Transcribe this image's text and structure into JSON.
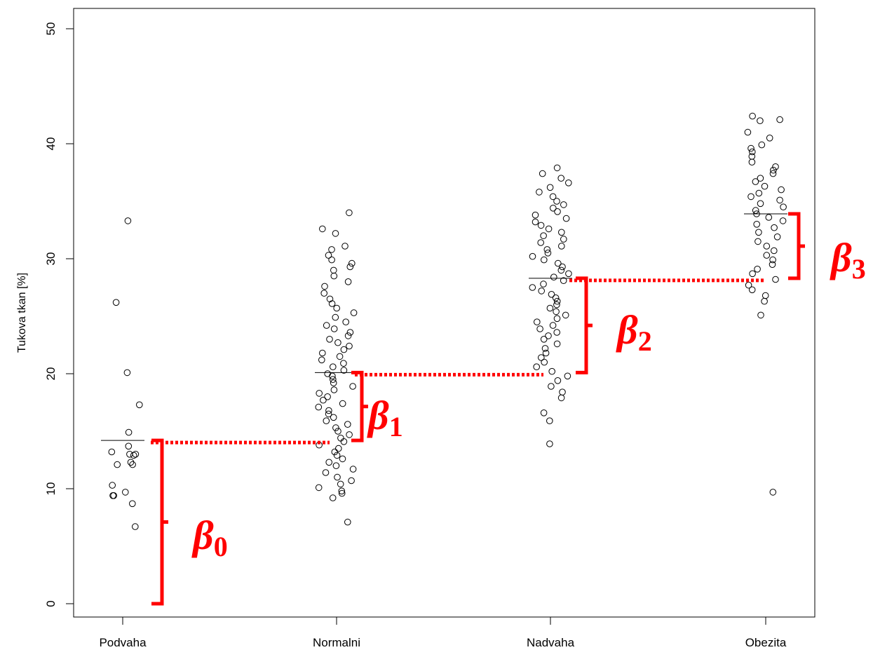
{
  "chart_data": {
    "type": "scatter",
    "ylabel": "Tukova tkan [%]",
    "xlabel": "",
    "categories": [
      "Podvaha",
      "Normalni",
      "Nadvaha",
      "Obezita"
    ],
    "ylim": [
      -2,
      52
    ],
    "yticks": [
      0,
      10,
      20,
      30,
      40,
      50
    ],
    "group_means": [
      14.2,
      20.1,
      28.3,
      33.9
    ],
    "series": [
      {
        "category": "Podvaha",
        "values": [
          33.3,
          26.2,
          20.1,
          17.3,
          14.9,
          13.7,
          13.2,
          13.0,
          13.0,
          12.9,
          12.3,
          12.1,
          12.1,
          10.3,
          9.7,
          9.4,
          9.4,
          8.7,
          6.7
        ]
      },
      {
        "category": "Normalni",
        "values": [
          34.0,
          32.6,
          32.2,
          31.1,
          30.8,
          30.3,
          29.9,
          29.6,
          29.3,
          29.0,
          28.5,
          28.0,
          27.6,
          27.0,
          26.5,
          26.1,
          25.7,
          25.3,
          24.9,
          24.5,
          24.2,
          23.9,
          23.6,
          23.3,
          23.0,
          22.7,
          22.4,
          22.1,
          21.8,
          21.5,
          21.2,
          20.9,
          20.6,
          20.3,
          20.0,
          19.8,
          19.5,
          19.2,
          18.9,
          18.6,
          18.3,
          18.0,
          17.7,
          17.4,
          17.1,
          16.8,
          16.5,
          16.2,
          15.9,
          15.6,
          15.3,
          15.0,
          14.7,
          14.4,
          14.1,
          13.8,
          13.5,
          13.2,
          12.9,
          12.6,
          12.3,
          12.0,
          11.7,
          11.4,
          11.0,
          10.7,
          10.4,
          10.1,
          9.8,
          9.6,
          9.2,
          7.1
        ]
      },
      {
        "category": "Nadvaha",
        "values": [
          37.9,
          37.4,
          37.0,
          36.6,
          36.2,
          35.8,
          35.4,
          35.0,
          34.7,
          34.4,
          34.1,
          33.8,
          33.5,
          33.2,
          32.9,
          32.6,
          32.3,
          32.0,
          31.7,
          31.4,
          31.1,
          30.8,
          30.5,
          30.2,
          29.9,
          29.6,
          29.3,
          29.0,
          28.7,
          28.4,
          28.1,
          27.8,
          27.5,
          27.2,
          26.9,
          26.6,
          26.3,
          26.0,
          25.7,
          25.4,
          25.1,
          24.8,
          24.5,
          24.2,
          23.9,
          23.6,
          23.3,
          23.0,
          22.6,
          22.2,
          21.8,
          21.4,
          21.0,
          20.6,
          20.2,
          19.8,
          19.4,
          18.9,
          18.4,
          17.9,
          16.6,
          15.9,
          13.9
        ]
      },
      {
        "category": "Obezita",
        "values": [
          42.4,
          42.1,
          42.0,
          41.0,
          40.5,
          39.9,
          39.6,
          39.3,
          38.9,
          38.4,
          38.0,
          37.7,
          37.4,
          37.0,
          36.7,
          36.3,
          36.0,
          35.7,
          35.4,
          35.1,
          34.8,
          34.5,
          34.2,
          33.9,
          33.6,
          33.3,
          33.0,
          32.7,
          32.3,
          31.9,
          31.5,
          31.1,
          30.7,
          30.3,
          29.9,
          29.5,
          29.1,
          28.7,
          28.2,
          27.7,
          27.3,
          26.8,
          26.3,
          25.1,
          9.7
        ]
      }
    ]
  },
  "annotations": {
    "beta_symbol": "β",
    "items": [
      {
        "sub": "0",
        "from": 0.0,
        "to": 14.2
      },
      {
        "sub": "1",
        "from": 14.2,
        "to": 20.1
      },
      {
        "sub": "2",
        "from": 20.1,
        "to": 28.3
      },
      {
        "sub": "3",
        "from": 28.3,
        "to": 33.9
      }
    ],
    "color": "#ff0000"
  }
}
